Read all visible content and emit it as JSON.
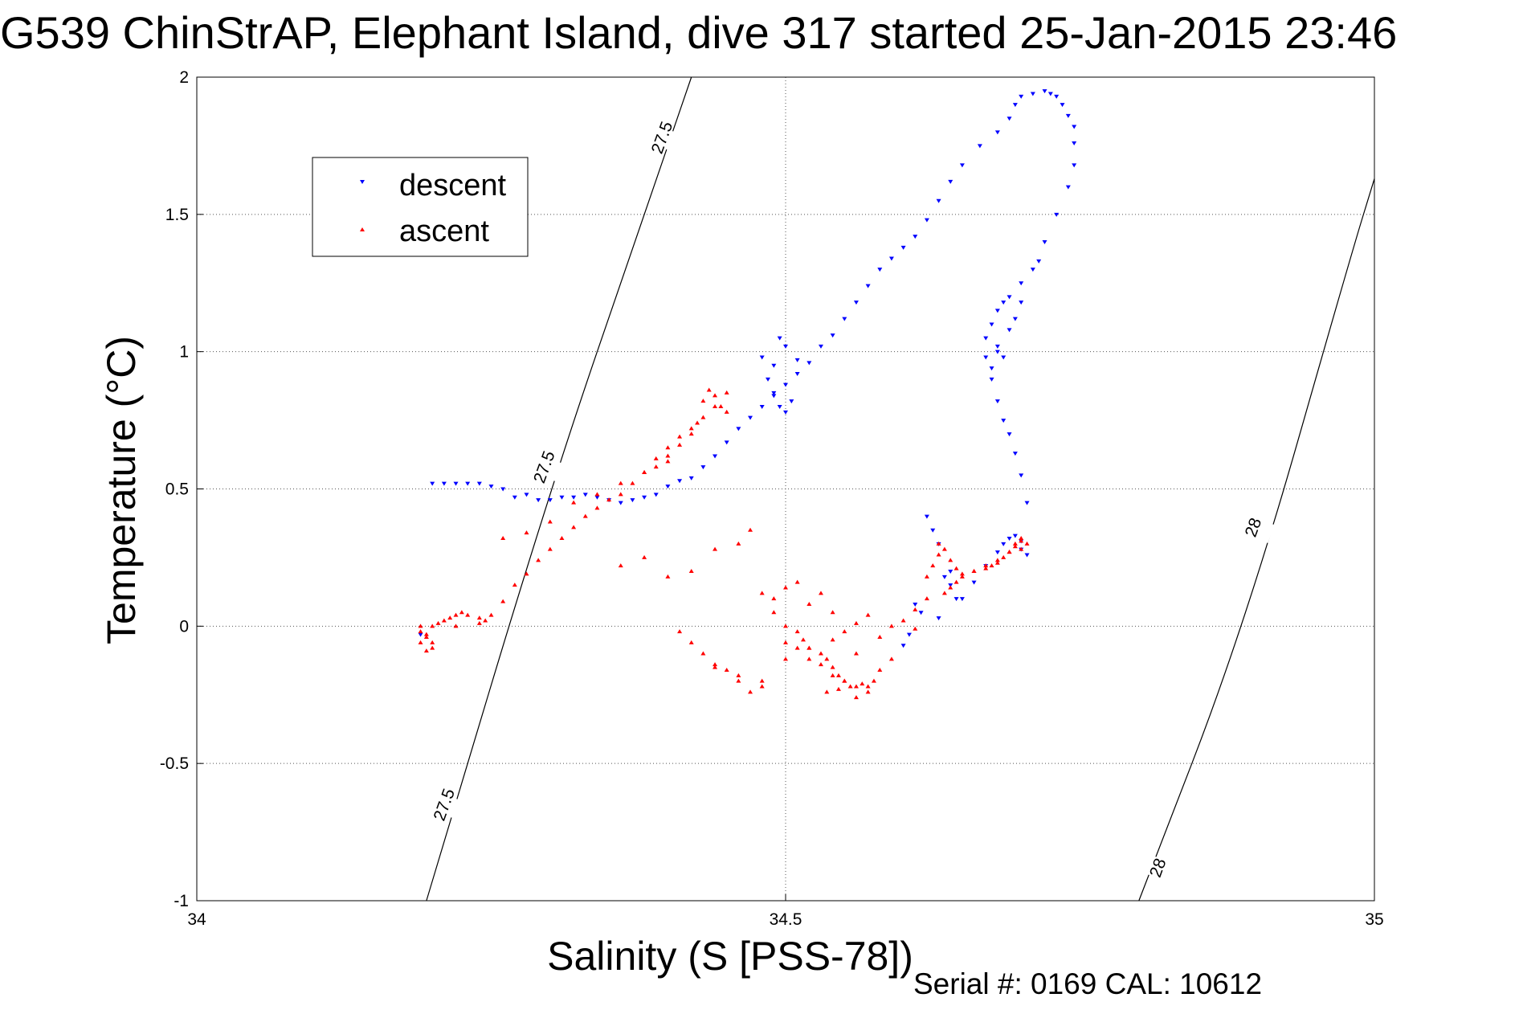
{
  "chart_data": {
    "type": "scatter",
    "title": "G539 ChinStrAP, Elephant Island, dive 317 started 25-Jan-2015 23:46",
    "xlabel": "Salinity (S [PSS-78])",
    "ylabel": "Temperature (°C)",
    "footer": "Serial #: 0169 CAL: 10612",
    "xlim": [
      34,
      35
    ],
    "ylim": [
      -1,
      2
    ],
    "xticks": [
      "34",
      "34.5",
      "35"
    ],
    "yticks": [
      "-1",
      "-0.5",
      "0",
      "0.5",
      "1",
      "1.5",
      "2"
    ],
    "grid": true,
    "legend_position": "top-left",
    "series": [
      {
        "name": "descent",
        "marker": "triangle-down",
        "color": "#0000ff",
        "x": [
          34.6,
          34.605,
          34.63,
          34.65,
          34.66,
          34.67,
          34.68,
          34.685,
          34.69,
          34.695,
          34.7,
          34.7,
          34.705,
          34.705,
          34.7,
          34.695,
          34.69,
          34.685,
          34.68,
          34.675,
          34.67,
          34.67,
          34.675,
          34.68,
          34.685,
          34.69,
          34.7,
          34.71,
          34.715,
          34.72,
          34.73,
          34.74,
          34.745,
          34.745,
          34.745,
          34.74,
          34.735,
          34.73,
          34.725,
          34.72,
          34.71,
          34.7,
          34.695,
          34.69,
          34.68,
          34.665,
          34.65,
          34.64,
          34.63,
          34.62,
          34.61,
          34.6,
          34.59,
          34.58,
          34.57,
          34.56,
          34.55,
          34.54,
          34.53,
          34.52,
          34.51,
          34.5,
          34.49,
          34.48,
          34.47,
          34.46,
          34.45,
          34.44,
          34.43,
          34.42,
          34.41,
          34.4,
          34.39,
          34.38,
          34.37,
          34.36,
          34.35,
          34.34,
          34.33,
          34.32,
          34.31,
          34.3,
          34.29,
          34.28,
          34.27,
          34.26,
          34.25,
          34.24,
          34.23,
          34.22,
          34.21,
          34.2,
          34.19,
          34.485,
          34.49,
          34.495,
          34.5,
          34.505,
          34.49,
          34.48,
          34.5,
          34.51,
          34.495,
          34.62,
          34.625,
          34.63,
          34.64,
          34.68,
          34.69,
          34.695,
          34.7,
          34.685,
          34.68,
          34.675,
          34.64,
          34.645,
          34.635,
          34.615,
          34.61
        ],
        "y": [
          -0.07,
          -0.03,
          0.03,
          0.1,
          0.16,
          0.22,
          0.27,
          0.3,
          0.32,
          0.33,
          0.31,
          0.28,
          0.26,
          0.45,
          0.55,
          0.63,
          0.7,
          0.75,
          0.82,
          0.9,
          0.98,
          1.05,
          1.1,
          1.15,
          1.18,
          1.2,
          1.25,
          1.3,
          1.33,
          1.4,
          1.5,
          1.6,
          1.68,
          1.76,
          1.82,
          1.86,
          1.9,
          1.93,
          1.94,
          1.95,
          1.94,
          1.93,
          1.9,
          1.85,
          1.8,
          1.75,
          1.68,
          1.62,
          1.55,
          1.48,
          1.42,
          1.38,
          1.34,
          1.3,
          1.24,
          1.18,
          1.12,
          1.06,
          1.02,
          0.96,
          0.92,
          0.88,
          0.84,
          0.8,
          0.76,
          0.72,
          0.67,
          0.62,
          0.58,
          0.54,
          0.53,
          0.51,
          0.48,
          0.47,
          0.46,
          0.45,
          0.46,
          0.47,
          0.48,
          0.47,
          0.47,
          0.46,
          0.46,
          0.48,
          0.47,
          0.5,
          0.51,
          0.52,
          0.52,
          0.52,
          0.52,
          0.52,
          -0.03,
          0.9,
          0.85,
          0.8,
          0.78,
          0.82,
          0.95,
          0.98,
          1.02,
          0.97,
          1.05,
          0.4,
          0.35,
          0.3,
          0.2,
          1.0,
          1.08,
          1.12,
          1.18,
          0.98,
          1.02,
          0.94,
          0.15,
          0.1,
          0.18,
          0.05,
          0.08
        ]
      },
      {
        "name": "ascent",
        "marker": "triangle-up",
        "color": "#ff0000",
        "x": [
          34.19,
          34.19,
          34.195,
          34.2,
          34.2,
          34.195,
          34.19,
          34.195,
          34.2,
          34.205,
          34.21,
          34.215,
          34.22,
          34.225,
          34.23,
          34.24,
          34.245,
          34.25,
          34.26,
          34.27,
          34.28,
          34.29,
          34.3,
          34.31,
          34.32,
          34.33,
          34.34,
          34.35,
          34.36,
          34.37,
          34.38,
          34.39,
          34.4,
          34.41,
          34.42,
          34.43,
          34.44,
          34.45,
          34.36,
          34.38,
          34.4,
          34.42,
          34.44,
          34.46,
          34.47,
          34.48,
          34.49,
          34.5,
          34.51,
          34.515,
          34.52,
          34.53,
          34.535,
          34.54,
          34.545,
          34.55,
          34.56,
          34.57,
          34.49,
          34.5,
          34.51,
          34.52,
          34.53,
          34.54,
          34.55,
          34.56,
          34.57,
          34.44,
          34.46,
          34.48,
          34.5,
          34.52,
          34.54,
          34.56,
          34.58,
          34.59,
          34.6,
          34.61,
          34.61,
          34.62,
          34.62,
          34.625,
          34.63,
          34.63,
          34.635,
          34.64,
          34.645,
          34.65,
          34.66,
          34.67,
          34.68,
          34.69,
          34.695,
          34.7,
          34.7,
          34.705,
          34.7,
          34.695,
          34.69,
          34.685,
          34.68,
          34.675,
          34.67,
          34.66,
          34.65,
          34.645,
          34.64,
          34.635,
          34.43,
          34.435,
          34.44,
          34.445,
          34.45,
          34.425,
          34.42,
          34.41,
          34.4,
          34.39,
          34.3,
          34.32,
          34.34,
          34.36,
          34.38,
          34.4,
          34.26,
          34.28,
          34.22,
          34.24,
          34.46,
          34.48,
          34.47,
          34.45,
          34.44,
          34.43,
          34.42,
          34.41,
          34.5,
          34.51,
          34.52,
          34.53,
          34.54,
          34.55,
          34.56,
          34.57,
          34.58,
          34.59,
          34.535,
          34.545,
          34.555,
          34.565,
          34.575
        ],
        "y": [
          0.0,
          -0.02,
          -0.04,
          -0.06,
          -0.08,
          -0.09,
          -0.06,
          -0.03,
          0.0,
          0.01,
          0.02,
          0.03,
          0.04,
          0.05,
          0.04,
          0.03,
          0.02,
          0.04,
          0.09,
          0.15,
          0.19,
          0.24,
          0.28,
          0.32,
          0.36,
          0.4,
          0.43,
          0.46,
          0.48,
          0.52,
          0.56,
          0.61,
          0.65,
          0.69,
          0.72,
          0.76,
          0.8,
          0.85,
          0.22,
          0.25,
          0.18,
          0.2,
          0.28,
          0.3,
          0.35,
          0.12,
          0.05,
          0.0,
          -0.02,
          -0.05,
          -0.08,
          -0.1,
          -0.12,
          -0.15,
          -0.18,
          -0.2,
          -0.22,
          -0.24,
          0.1,
          0.14,
          0.16,
          0.08,
          0.12,
          0.05,
          -0.02,
          0.01,
          0.04,
          -0.15,
          -0.18,
          -0.2,
          -0.12,
          -0.08,
          -0.05,
          -0.1,
          -0.04,
          0.0,
          0.02,
          -0.01,
          0.06,
          0.1,
          0.18,
          0.22,
          0.26,
          0.3,
          0.28,
          0.24,
          0.21,
          0.19,
          0.2,
          0.22,
          0.24,
          0.27,
          0.3,
          0.31,
          0.32,
          0.3,
          0.28,
          0.29,
          0.27,
          0.25,
          0.23,
          0.22,
          0.21,
          0.2,
          0.18,
          0.16,
          0.14,
          0.12,
          0.82,
          0.86,
          0.84,
          0.8,
          0.78,
          0.74,
          0.7,
          0.66,
          0.62,
          0.58,
          0.38,
          0.45,
          0.48,
          0.52,
          0.56,
          0.6,
          0.32,
          0.34,
          0.0,
          0.01,
          -0.2,
          -0.22,
          -0.24,
          -0.16,
          -0.14,
          -0.1,
          -0.06,
          -0.02,
          -0.06,
          -0.08,
          -0.12,
          -0.14,
          -0.18,
          -0.2,
          -0.26,
          -0.22,
          -0.16,
          -0.12,
          -0.24,
          -0.23,
          -0.22,
          -0.21,
          -0.2
        ]
      }
    ],
    "contours": [
      {
        "label": "27.5",
        "x": [
          34.195,
          34.3,
          34.38,
          34.42
        ],
        "y": [
          -1,
          0.5,
          1.5,
          2
        ],
        "label_points": [
          [
            34.21,
            -0.65
          ],
          [
            34.295,
            0.58
          ],
          [
            34.395,
            1.78
          ]
        ]
      },
      {
        "label": "28",
        "x": [
          34.8,
          34.89,
          34.98,
          35.0
        ],
        "y": [
          -1,
          0.0,
          1.35,
          1.63
        ],
        "label_points": [
          [
            34.816,
            -0.88
          ],
          [
            34.897,
            0.36
          ]
        ]
      }
    ]
  }
}
